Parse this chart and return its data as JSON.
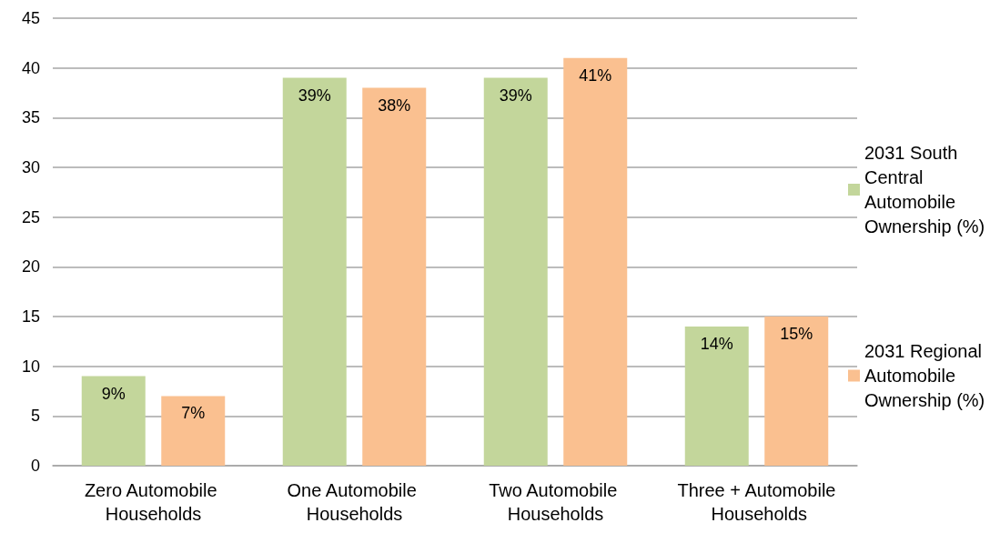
{
  "chart_data": {
    "type": "bar",
    "categories": [
      "Zero Automobile Households",
      "One Automobile Households",
      "Two Automobile Households",
      "Three + Automobile Households"
    ],
    "series": [
      {
        "name": "2031 South Central Automobile Ownership (%)",
        "color": "#c3d69b",
        "values": [
          9,
          39,
          39,
          14
        ],
        "value_labels": [
          "9%",
          "39%",
          "39%",
          "14%"
        ]
      },
      {
        "name": "2031 Regional Automobile Ownership (%)",
        "color": "#fac090",
        "values": [
          7,
          38,
          41,
          15
        ],
        "value_labels": [
          "7%",
          "38%",
          "41%",
          "15%"
        ]
      }
    ],
    "ylim": [
      0,
      45
    ],
    "yticks": [
      0,
      5,
      10,
      15,
      20,
      25,
      30,
      35,
      40,
      45
    ],
    "grid": "y",
    "legend": "right"
  }
}
